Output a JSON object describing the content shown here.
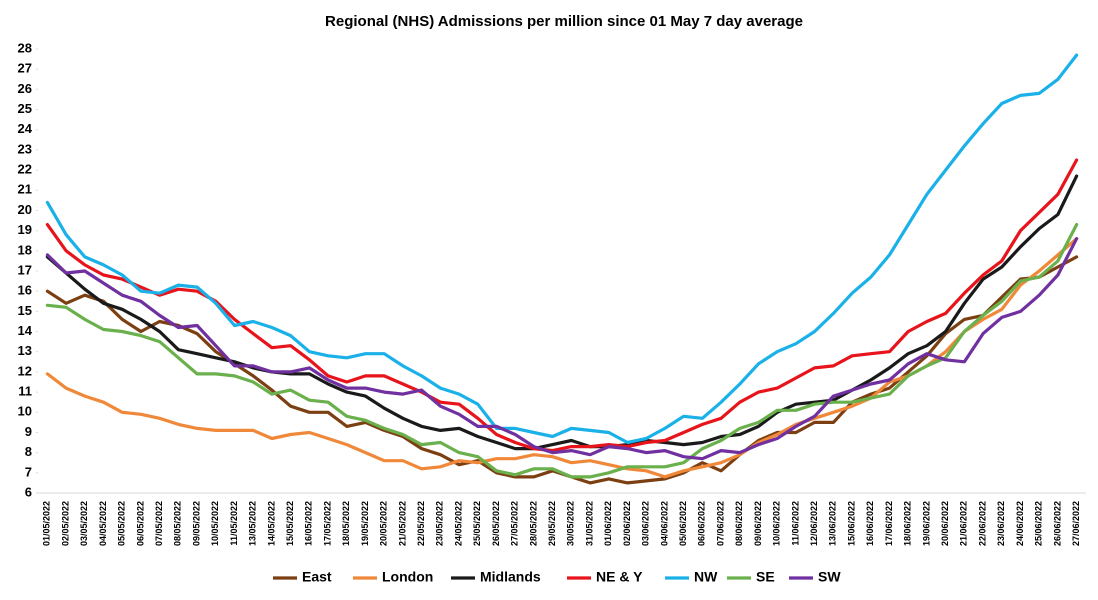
{
  "chart_data": {
    "type": "line",
    "title": "Regional (NHS) Admissions per million since 01 May 7 day average",
    "categories": [
      "01/05/2022",
      "02/05/2022",
      "03/05/2022",
      "04/05/2022",
      "05/05/2022",
      "06/05/2022",
      "07/05/2022",
      "08/05/2022",
      "09/05/2022",
      "10/05/2022",
      "11/05/2022",
      "13/05/2022",
      "14/05/2022",
      "15/05/2022",
      "16/05/2022",
      "17/05/2022",
      "18/05/2022",
      "19/05/2022",
      "20/05/2022",
      "21/05/2022",
      "22/05/2022",
      "23/05/2022",
      "24/05/2022",
      "25/05/2022",
      "26/05/2022",
      "27/05/2022",
      "28/05/2022",
      "29/05/2022",
      "30/05/2022",
      "31/05/2022",
      "01/06/2022",
      "02/06/2022",
      "03/06/2022",
      "04/06/2022",
      "05/06/2022",
      "06/06/2022",
      "07/06/2022",
      "08/06/2022",
      "09/06/2022",
      "10/06/2022",
      "11/06/2022",
      "12/06/2022",
      "13/06/2022",
      "15/06/2022",
      "16/06/2022",
      "17/06/2022",
      "18/06/2022",
      "19/06/2022",
      "20/06/2022",
      "21/06/2022",
      "22/06/2022",
      "23/06/2022",
      "24/06/2022",
      "25/06/2022",
      "26/06/2022",
      "27/06/2022"
    ],
    "series": [
      {
        "name": "East",
        "color": "#7b3f12",
        "values": [
          16.0,
          15.4,
          15.8,
          15.5,
          14.6,
          14.0,
          14.5,
          14.3,
          13.9,
          13.0,
          12.4,
          11.8,
          11.1,
          10.3,
          10.0,
          10.0,
          9.3,
          9.5,
          9.1,
          8.8,
          8.2,
          7.9,
          7.4,
          7.6,
          7.0,
          6.8,
          6.8,
          7.1,
          6.8,
          6.5,
          6.7,
          6.5,
          6.6,
          6.7,
          7.0,
          7.5,
          7.1,
          7.9,
          8.6,
          9.0,
          9.0,
          9.5,
          9.5,
          10.5,
          10.9,
          11.2,
          12.0,
          12.8,
          13.9,
          14.6,
          14.8,
          15.7,
          16.6,
          16.7,
          17.2,
          17.7
        ]
      },
      {
        "name": "London",
        "color": "#f0883a",
        "values": [
          11.9,
          11.2,
          10.8,
          10.5,
          10.0,
          9.9,
          9.7,
          9.4,
          9.2,
          9.1,
          9.1,
          9.1,
          8.7,
          8.9,
          9.0,
          8.7,
          8.4,
          8.0,
          7.6,
          7.6,
          7.2,
          7.3,
          7.6,
          7.5,
          7.7,
          7.7,
          7.9,
          7.8,
          7.5,
          7.6,
          7.4,
          7.2,
          7.1,
          6.8,
          7.1,
          7.3,
          7.5,
          7.9,
          8.5,
          8.9,
          9.4,
          9.7,
          10.0,
          10.3,
          10.7,
          11.5,
          11.8,
          12.3,
          13.0,
          14.0,
          14.6,
          15.1,
          16.3,
          17.0,
          17.8,
          18.6
        ]
      },
      {
        "name": "Midlands",
        "color": "#1a1a1a",
        "values": [
          17.7,
          16.9,
          16.1,
          15.4,
          15.1,
          14.6,
          14.0,
          13.1,
          12.9,
          12.7,
          12.5,
          12.2,
          12.0,
          11.9,
          11.9,
          11.4,
          11.0,
          10.8,
          10.2,
          9.7,
          9.3,
          9.1,
          9.2,
          8.8,
          8.5,
          8.2,
          8.2,
          8.4,
          8.6,
          8.3,
          8.3,
          8.4,
          8.6,
          8.5,
          8.4,
          8.5,
          8.8,
          8.9,
          9.3,
          10.0,
          10.4,
          10.5,
          10.6,
          11.1,
          11.6,
          12.2,
          12.9,
          13.3,
          14.0,
          15.4,
          16.6,
          17.2,
          18.2,
          19.1,
          19.8,
          21.7
        ]
      },
      {
        "name": "NE & Y",
        "color": "#e8141b",
        "values": [
          19.3,
          18.0,
          17.3,
          16.8,
          16.6,
          16.2,
          15.8,
          16.1,
          16.0,
          15.5,
          14.6,
          13.9,
          13.2,
          13.3,
          12.6,
          11.8,
          11.5,
          11.8,
          11.8,
          11.4,
          11.0,
          10.5,
          10.4,
          9.7,
          8.9,
          8.5,
          8.2,
          8.1,
          8.3,
          8.3,
          8.4,
          8.3,
          8.5,
          8.6,
          9.0,
          9.4,
          9.7,
          10.5,
          11.0,
          11.2,
          11.7,
          12.2,
          12.3,
          12.8,
          12.9,
          13.0,
          14.0,
          14.5,
          14.9,
          15.9,
          16.8,
          17.5,
          19.0,
          19.9,
          20.8,
          22.5
        ]
      },
      {
        "name": "NW",
        "color": "#1ab0e8",
        "values": [
          20.4,
          18.8,
          17.7,
          17.3,
          16.8,
          16.0,
          15.9,
          16.3,
          16.2,
          15.4,
          14.3,
          14.5,
          14.2,
          13.8,
          13.0,
          12.8,
          12.7,
          12.9,
          12.9,
          12.3,
          11.8,
          11.2,
          10.9,
          10.4,
          9.2,
          9.2,
          9.0,
          8.8,
          9.2,
          9.1,
          9.0,
          8.5,
          8.7,
          9.2,
          9.8,
          9.7,
          10.5,
          11.4,
          12.4,
          13.0,
          13.4,
          14.0,
          14.9,
          15.9,
          16.7,
          17.8,
          19.3,
          20.8,
          22.0,
          23.2,
          24.3,
          25.3,
          25.7,
          25.8,
          26.5,
          27.7
        ]
      },
      {
        "name": "SE",
        "color": "#6ab04c",
        "values": [
          15.3,
          15.2,
          14.6,
          14.1,
          14.0,
          13.8,
          13.5,
          12.7,
          11.9,
          11.9,
          11.8,
          11.5,
          10.9,
          11.1,
          10.6,
          10.5,
          9.8,
          9.6,
          9.2,
          8.9,
          8.4,
          8.5,
          8.0,
          7.8,
          7.1,
          6.9,
          7.2,
          7.2,
          6.8,
          6.8,
          7.0,
          7.3,
          7.3,
          7.3,
          7.5,
          8.2,
          8.6,
          9.2,
          9.5,
          10.1,
          10.1,
          10.4,
          10.5,
          10.5,
          10.7,
          10.9,
          11.8,
          12.3,
          12.7,
          14.0,
          14.8,
          15.5,
          16.5,
          16.7,
          17.5,
          19.3
        ]
      },
      {
        "name": "SW",
        "color": "#7030a0",
        "values": [
          17.8,
          16.9,
          17.0,
          16.4,
          15.8,
          15.5,
          14.8,
          14.2,
          14.3,
          13.3,
          12.3,
          12.3,
          12.0,
          12.0,
          12.2,
          11.6,
          11.2,
          11.2,
          11.0,
          10.9,
          11.1,
          10.3,
          9.9,
          9.3,
          9.3,
          8.9,
          8.3,
          8.0,
          8.1,
          7.9,
          8.3,
          8.2,
          8.0,
          8.1,
          7.8,
          7.7,
          8.1,
          8.0,
          8.4,
          8.7,
          9.3,
          9.8,
          10.8,
          11.1,
          11.4,
          11.6,
          12.4,
          12.9,
          12.6,
          12.5,
          13.9,
          14.7,
          15.0,
          15.8,
          16.8,
          18.6
        ]
      }
    ],
    "ylim": [
      6,
      28
    ],
    "yticks": [
      6,
      7,
      8,
      9,
      10,
      11,
      12,
      13,
      14,
      15,
      16,
      17,
      18,
      19,
      20,
      21,
      22,
      23,
      24,
      25,
      26,
      27,
      28
    ],
    "grid": false,
    "legend": "bottom"
  }
}
